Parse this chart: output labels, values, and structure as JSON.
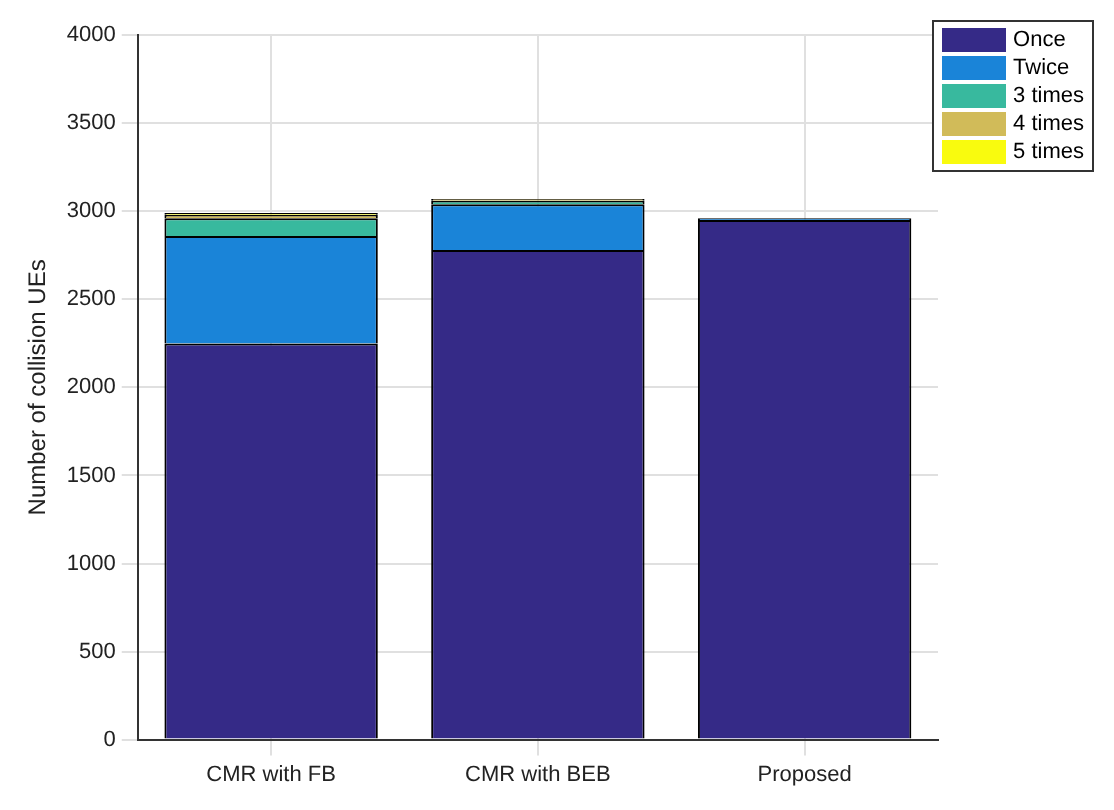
{
  "chart_data": {
    "type": "bar",
    "stacked": true,
    "ylabel": "Number of collision UEs",
    "categories": [
      "CMR with FB",
      "CMR with BEB",
      "Proposed"
    ],
    "series": [
      {
        "name": "Once",
        "color": "#352a87",
        "values": [
          2250,
          2780,
          2950
        ]
      },
      {
        "name": "Twice",
        "color": "#1a84d8",
        "values": [
          610,
          260,
          10
        ]
      },
      {
        "name": "3 times",
        "color": "#38b99e",
        "values": [
          100,
          20,
          0
        ]
      },
      {
        "name": "4 times",
        "color": "#d1bb59",
        "values": [
          20,
          10,
          0
        ]
      },
      {
        "name": "5 times",
        "color": "#f9fb0e",
        "values": [
          10,
          0,
          0
        ]
      }
    ],
    "ylim": [
      0,
      4000
    ],
    "yticks": [
      0,
      500,
      1000,
      1500,
      2000,
      2500,
      3000,
      3500,
      4000
    ],
    "grid": true,
    "legend": "top right"
  }
}
